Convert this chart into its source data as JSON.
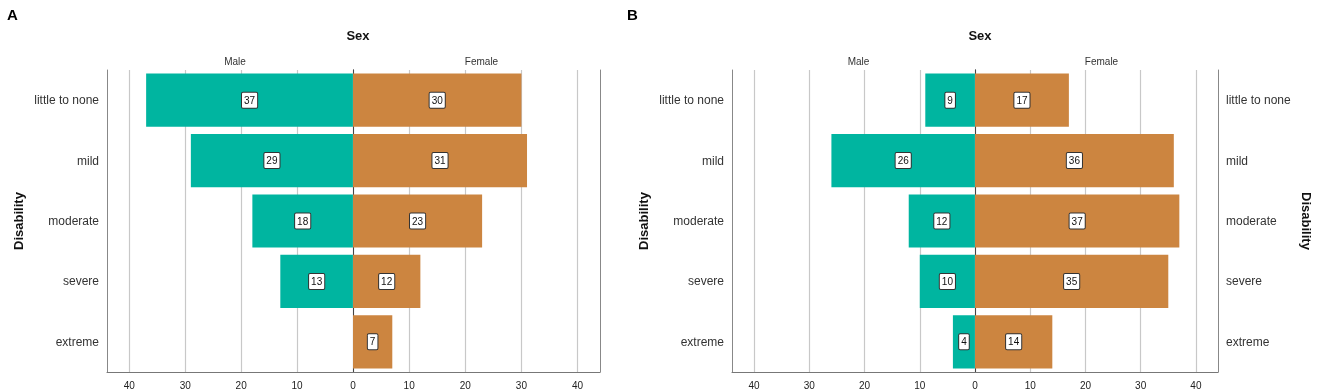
{
  "chart_data": [
    {
      "type": "bar",
      "orientation": "horizontal",
      "title": "Sex",
      "subtitle": "Male",
      "annotations": [
        "A"
      ],
      "ylabel": "Disability",
      "categories": [
        "little to none",
        "mild",
        "moderate",
        "severe",
        "extreme"
      ],
      "values": [
        37,
        29,
        18,
        13,
        null
      ],
      "color": "#00b5a0",
      "xlim": [
        44,
        0
      ],
      "xticks": [
        40,
        30,
        20,
        10,
        0
      ],
      "grid": "x",
      "data_labels": true
    },
    {
      "type": "bar",
      "orientation": "horizontal",
      "subtitle": "Female",
      "values": [
        30,
        31,
        23,
        12,
        7
      ],
      "color": "#cc8540",
      "xlim": [
        0,
        44
      ],
      "xticks": [
        {
          "value": 0,
          "label": null
        },
        10,
        20,
        30,
        40
      ],
      "grid": "x",
      "data_labels": true,
      "tick_labels": "x"
    },
    {
      "type": "bar",
      "orientation": "horizontal",
      "title": "Sex",
      "subtitle": "Male",
      "annotations": [
        "B"
      ],
      "ylabel": "Disability",
      "categories": [
        "little to none",
        "mild",
        "moderate",
        "severe",
        "extreme"
      ],
      "values": [
        9,
        26,
        12,
        10,
        4
      ],
      "color": "#00b5a0",
      "xlim": [
        44,
        0
      ],
      "xticks": [
        40,
        30,
        20,
        10,
        0
      ],
      "grid": "x",
      "data_labels": true
    },
    {
      "type": "bar",
      "orientation": "horizontal",
      "subtitle": "Female",
      "ylabel": "Disability",
      "categories": [
        "little to none",
        "mild",
        "moderate",
        "severe",
        "extreme"
      ],
      "values": [
        17,
        36,
        37,
        35,
        14
      ],
      "color": "#cc8540",
      "xlim": [
        0,
        44
      ],
      "xticks": [
        {
          "value": 0,
          "label": null
        },
        10,
        20,
        30,
        40
      ],
      "grid": "x",
      "data_labels": true
    }
  ]
}
